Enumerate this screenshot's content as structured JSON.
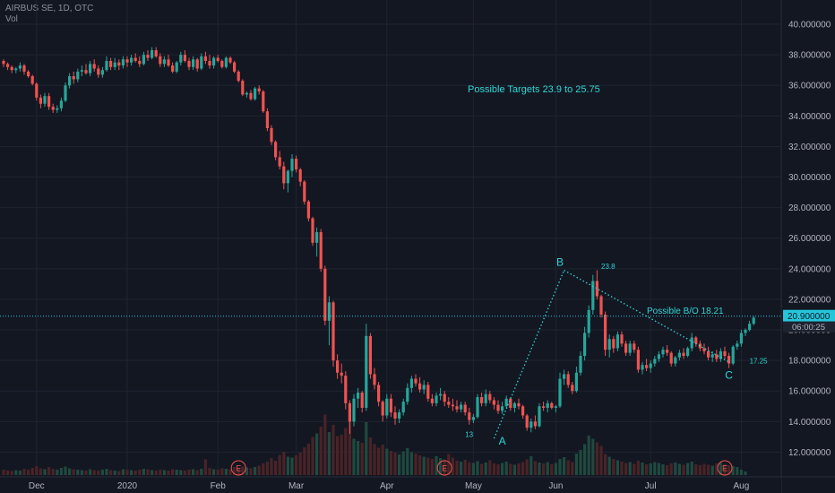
{
  "header": {
    "symbol_line": "AIRBUS SE, 1D, OTC",
    "volume_label": "Vol"
  },
  "colors": {
    "background": "#131722",
    "grid": "#1f2430",
    "up": "#26a69a",
    "down": "#ef5350",
    "vol_up": "#1f4a3f",
    "vol_down": "#4a2326",
    "annotation": "#2fd6d6",
    "axis_text": "#b2b5be",
    "price_line": "#26c6da"
  },
  "chart_data": {
    "type": "candlestick",
    "title": "AIRBUS SE, 1D, OTC",
    "y_axis": {
      "min": 10.5,
      "max": 41,
      "ticks": [
        12,
        14,
        16,
        18,
        20,
        22,
        24,
        26,
        28,
        30,
        32,
        34,
        36,
        38,
        40
      ],
      "tick_labels": [
        "12.000000",
        "14.000000",
        "16.000000",
        "18.000000",
        "20.000000",
        "22.000000",
        "24.000000",
        "26.000000",
        "28.000000",
        "30.000000",
        "32.000000",
        "34.000000",
        "36.000000",
        "38.000000",
        "40.000000"
      ]
    },
    "x_axis": {
      "labels": [
        {
          "i": 8,
          "label": "Dec"
        },
        {
          "i": 30,
          "label": "2020"
        },
        {
          "i": 52,
          "label": "Feb"
        },
        {
          "i": 71,
          "label": "Mar"
        },
        {
          "i": 93,
          "label": "Apr"
        },
        {
          "i": 114,
          "label": "May"
        },
        {
          "i": 134,
          "label": "Jun"
        },
        {
          "i": 157,
          "label": "Jul"
        },
        {
          "i": 179,
          "label": "Aug"
        }
      ]
    },
    "candles": [
      [
        37.6,
        37.7,
        37.2,
        37.4
      ],
      [
        37.4,
        37.5,
        37.0,
        37.2
      ],
      [
        37.2,
        37.3,
        36.8,
        37.0
      ],
      [
        37.0,
        37.2,
        36.8,
        37.1
      ],
      [
        37.1,
        37.5,
        36.9,
        37.3
      ],
      [
        37.3,
        37.4,
        36.7,
        36.9
      ],
      [
        36.9,
        37.0,
        36.5,
        36.6
      ],
      [
        36.6,
        36.7,
        36.0,
        36.1
      ],
      [
        36.1,
        36.2,
        35.0,
        35.2
      ],
      [
        35.2,
        35.4,
        34.5,
        34.8
      ],
      [
        34.8,
        35.5,
        34.6,
        35.3
      ],
      [
        35.3,
        35.5,
        34.4,
        34.6
      ],
      [
        34.6,
        34.8,
        34.2,
        34.4
      ],
      [
        34.4,
        34.7,
        34.2,
        34.5
      ],
      [
        34.5,
        35.2,
        34.3,
        35.0
      ],
      [
        35.0,
        36.2,
        34.9,
        36.0
      ],
      [
        36.0,
        36.8,
        35.8,
        36.6
      ],
      [
        36.6,
        36.9,
        36.1,
        36.4
      ],
      [
        36.4,
        37.1,
        36.2,
        36.9
      ],
      [
        36.9,
        37.3,
        36.6,
        37.0
      ],
      [
        37.0,
        37.4,
        36.7,
        36.8
      ],
      [
        36.8,
        37.6,
        36.6,
        37.4
      ],
      [
        37.4,
        37.7,
        36.9,
        37.1
      ],
      [
        37.1,
        37.3,
        36.5,
        36.7
      ],
      [
        36.7,
        37.2,
        36.5,
        37.0
      ],
      [
        37.0,
        37.9,
        36.9,
        37.6
      ],
      [
        37.6,
        37.8,
        37.0,
        37.2
      ],
      [
        37.2,
        37.8,
        37.0,
        37.5
      ],
      [
        37.5,
        37.7,
        37.0,
        37.3
      ],
      [
        37.3,
        37.9,
        37.1,
        37.7
      ],
      [
        37.7,
        37.9,
        37.2,
        37.5
      ],
      [
        37.5,
        38.0,
        37.3,
        37.8
      ],
      [
        37.8,
        38.1,
        37.5,
        37.6
      ],
      [
        37.6,
        37.9,
        37.2,
        37.4
      ],
      [
        37.4,
        38.2,
        37.3,
        38.0
      ],
      [
        38.0,
        38.3,
        37.6,
        37.8
      ],
      [
        37.8,
        38.5,
        37.7,
        38.3
      ],
      [
        38.3,
        38.5,
        37.8,
        37.9
      ],
      [
        37.9,
        38.1,
        37.2,
        37.4
      ],
      [
        37.4,
        37.9,
        37.2,
        37.7
      ],
      [
        37.7,
        38.0,
        37.2,
        37.3
      ],
      [
        37.3,
        37.5,
        36.8,
        36.9
      ],
      [
        36.9,
        37.6,
        36.8,
        37.5
      ],
      [
        37.5,
        38.2,
        37.3,
        38.0
      ],
      [
        38.0,
        38.3,
        37.5,
        37.6
      ],
      [
        37.6,
        37.8,
        37.0,
        37.2
      ],
      [
        37.2,
        37.9,
        37.0,
        37.7
      ],
      [
        37.7,
        37.8,
        36.9,
        37.1
      ],
      [
        37.1,
        38.1,
        37.0,
        37.9
      ],
      [
        37.9,
        38.2,
        37.4,
        37.6
      ],
      [
        37.6,
        38.0,
        37.1,
        37.3
      ],
      [
        37.3,
        37.9,
        37.1,
        37.8
      ],
      [
        37.8,
        38.0,
        37.5,
        37.6
      ],
      [
        37.6,
        37.7,
        37.1,
        37.2
      ],
      [
        37.2,
        37.9,
        37.1,
        37.8
      ],
      [
        37.8,
        37.9,
        37.4,
        37.5
      ],
      [
        37.5,
        37.6,
        36.8,
        36.9
      ],
      [
        36.9,
        37.0,
        36.2,
        36.3
      ],
      [
        36.3,
        36.4,
        35.3,
        35.4
      ],
      [
        35.4,
        35.6,
        35.2,
        35.5
      ],
      [
        35.5,
        35.7,
        35.0,
        35.1
      ],
      [
        35.1,
        35.9,
        35.0,
        35.8
      ],
      [
        35.8,
        36.0,
        35.4,
        35.6
      ],
      [
        35.6,
        35.7,
        34.2,
        34.3
      ],
      [
        34.3,
        34.5,
        33.0,
        33.2
      ],
      [
        33.2,
        33.4,
        32.1,
        32.3
      ],
      [
        32.3,
        32.4,
        31.1,
        31.3
      ],
      [
        31.3,
        31.7,
        30.5,
        30.7
      ],
      [
        30.7,
        31.0,
        29.2,
        29.6
      ],
      [
        29.6,
        30.5,
        29.0,
        30.4
      ],
      [
        30.4,
        31.5,
        30.0,
        31.2
      ],
      [
        31.2,
        31.4,
        30.3,
        30.5
      ],
      [
        30.5,
        30.6,
        29.4,
        29.7
      ],
      [
        29.7,
        29.8,
        28.2,
        28.4
      ],
      [
        28.4,
        28.5,
        27.1,
        27.3
      ],
      [
        27.3,
        27.4,
        25.5,
        25.7
      ],
      [
        25.7,
        26.7,
        24.8,
        26.4
      ],
      [
        26.4,
        26.6,
        23.8,
        24.0
      ],
      [
        24.0,
        24.2,
        20.3,
        20.6
      ],
      [
        20.6,
        22.2,
        19.0,
        21.8
      ],
      [
        21.8,
        21.9,
        17.6,
        18.0
      ],
      [
        18.0,
        18.4,
        16.8,
        17.2
      ],
      [
        17.2,
        17.8,
        16.5,
        17.0
      ],
      [
        17.0,
        17.3,
        14.8,
        15.2
      ],
      [
        15.2,
        15.4,
        13.2,
        14.0
      ],
      [
        14.0,
        15.8,
        13.7,
        15.5
      ],
      [
        15.5,
        16.2,
        14.9,
        15.9
      ],
      [
        15.9,
        16.0,
        14.6,
        14.9
      ],
      [
        14.9,
        20.4,
        14.7,
        19.6
      ],
      [
        19.6,
        19.8,
        16.8,
        17.1
      ],
      [
        17.1,
        17.5,
        16.1,
        16.4
      ],
      [
        16.4,
        16.6,
        15.0,
        15.3
      ],
      [
        15.3,
        15.4,
        14.0,
        14.4
      ],
      [
        14.4,
        15.8,
        14.2,
        15.5
      ],
      [
        15.5,
        15.8,
        14.3,
        14.6
      ],
      [
        14.6,
        15.0,
        13.8,
        14.2
      ],
      [
        14.2,
        14.8,
        13.9,
        14.6
      ],
      [
        14.6,
        15.5,
        14.4,
        15.3
      ],
      [
        15.3,
        16.5,
        15.1,
        16.2
      ],
      [
        16.2,
        17.0,
        15.9,
        16.8
      ],
      [
        16.8,
        17.1,
        16.3,
        16.5
      ],
      [
        16.5,
        16.9,
        15.9,
        16.1
      ],
      [
        16.1,
        16.7,
        15.8,
        16.4
      ],
      [
        16.4,
        16.6,
        15.3,
        15.5
      ],
      [
        15.5,
        15.8,
        15.0,
        15.2
      ],
      [
        15.2,
        15.9,
        15.0,
        15.7
      ],
      [
        15.7,
        16.2,
        15.4,
        15.8
      ],
      [
        15.8,
        16.0,
        15.0,
        15.3
      ],
      [
        15.3,
        15.6,
        14.9,
        15.1
      ],
      [
        15.1,
        15.5,
        14.7,
        15.0
      ],
      [
        15.0,
        15.4,
        14.6,
        14.8
      ],
      [
        14.8,
        15.3,
        14.6,
        15.1
      ],
      [
        15.1,
        15.3,
        14.4,
        14.6
      ],
      [
        14.6,
        14.9,
        13.8,
        14.1
      ],
      [
        14.1,
        14.5,
        13.9,
        14.3
      ],
      [
        14.3,
        15.8,
        14.2,
        15.6
      ],
      [
        15.6,
        15.9,
        15.0,
        15.2
      ],
      [
        15.2,
        16.1,
        15.0,
        15.8
      ],
      [
        15.8,
        16.0,
        15.2,
        15.4
      ],
      [
        15.4,
        15.6,
        14.8,
        15.1
      ],
      [
        15.1,
        15.4,
        14.5,
        14.7
      ],
      [
        14.7,
        15.3,
        14.5,
        15.0
      ],
      [
        15.0,
        15.7,
        14.9,
        15.5
      ],
      [
        15.5,
        15.6,
        14.7,
        14.9
      ],
      [
        14.9,
        15.3,
        14.6,
        15.2
      ],
      [
        15.2,
        15.5,
        14.8,
        15.0
      ],
      [
        15.0,
        15.1,
        14.2,
        14.4
      ],
      [
        14.4,
        14.5,
        13.4,
        13.6
      ],
      [
        13.6,
        14.2,
        13.3,
        14.0
      ],
      [
        14.0,
        14.4,
        13.5,
        13.7
      ],
      [
        13.7,
        15.2,
        13.6,
        15.0
      ],
      [
        15.0,
        15.3,
        14.7,
        14.9
      ],
      [
        14.9,
        15.4,
        14.6,
        15.2
      ],
      [
        15.2,
        15.3,
        14.8,
        14.9
      ],
      [
        14.9,
        15.1,
        14.6,
        15.0
      ],
      [
        15.0,
        17.2,
        14.9,
        16.8
      ],
      [
        16.8,
        17.4,
        16.4,
        17.1
      ],
      [
        17.1,
        17.3,
        16.2,
        16.4
      ],
      [
        16.4,
        16.6,
        15.8,
        16.0
      ],
      [
        16.0,
        17.6,
        15.9,
        17.2
      ],
      [
        17.2,
        18.6,
        17.0,
        18.3
      ],
      [
        18.3,
        20.2,
        18.0,
        19.8
      ],
      [
        19.8,
        21.6,
        19.5,
        21.3
      ],
      [
        21.3,
        23.6,
        21.0,
        23.2
      ],
      [
        23.2,
        23.9,
        22.0,
        22.2
      ],
      [
        22.2,
        22.3,
        20.8,
        21.0
      ],
      [
        21.0,
        21.2,
        18.3,
        18.7
      ],
      [
        18.7,
        19.7,
        18.2,
        19.4
      ],
      [
        19.4,
        19.6,
        18.5,
        18.8
      ],
      [
        18.8,
        19.9,
        18.6,
        19.7
      ],
      [
        19.7,
        19.9,
        18.9,
        19.1
      ],
      [
        19.1,
        19.3,
        18.3,
        18.5
      ],
      [
        18.5,
        19.3,
        18.3,
        19.1
      ],
      [
        19.1,
        19.3,
        18.5,
        18.7
      ],
      [
        18.7,
        18.9,
        17.2,
        17.4
      ],
      [
        17.4,
        17.9,
        17.1,
        17.7
      ],
      [
        17.7,
        18.1,
        17.3,
        17.5
      ],
      [
        17.5,
        18.0,
        17.2,
        17.8
      ],
      [
        17.8,
        18.3,
        17.6,
        18.1
      ],
      [
        18.1,
        18.6,
        17.9,
        18.4
      ],
      [
        18.4,
        18.9,
        18.2,
        18.7
      ],
      [
        18.7,
        19.0,
        18.3,
        18.5
      ],
      [
        18.5,
        18.6,
        17.6,
        17.8
      ],
      [
        17.8,
        18.3,
        17.6,
        18.2
      ],
      [
        18.2,
        18.7,
        18.0,
        18.5
      ],
      [
        18.5,
        18.8,
        18.1,
        18.3
      ],
      [
        18.3,
        18.9,
        18.2,
        18.8
      ],
      [
        18.8,
        19.8,
        18.6,
        19.5
      ],
      [
        19.5,
        19.6,
        18.9,
        19.1
      ],
      [
        19.1,
        19.3,
        18.6,
        18.8
      ],
      [
        18.8,
        19.1,
        18.4,
        18.6
      ],
      [
        18.6,
        18.9,
        18.0,
        18.2
      ],
      [
        18.2,
        18.6,
        17.9,
        18.4
      ],
      [
        18.4,
        18.7,
        17.9,
        18.1
      ],
      [
        18.1,
        18.8,
        17.9,
        18.6
      ],
      [
        18.6,
        18.9,
        18.1,
        18.3
      ],
      [
        18.3,
        18.5,
        17.5,
        17.8
      ],
      [
        17.8,
        19.0,
        17.7,
        18.9
      ],
      [
        18.9,
        19.3,
        18.7,
        19.1
      ],
      [
        19.1,
        20.0,
        18.9,
        19.8
      ],
      [
        19.8,
        20.1,
        19.6,
        20.0
      ],
      [
        20.0,
        20.6,
        19.9,
        20.4
      ],
      [
        20.4,
        20.9,
        20.3,
        20.8
      ]
    ],
    "volume_max": 14,
    "volume": [
      1.2,
      1.0,
      0.9,
      1.1,
      1.0,
      1.4,
      1.2,
      1.6,
      2.0,
      1.5,
      1.3,
      1.8,
      1.4,
      1.2,
      1.6,
      1.9,
      1.5,
      1.3,
      1.2,
      1.1,
      1.0,
      1.3,
      1.1,
      1.0,
      1.2,
      1.4,
      1.1,
      1.0,
      0.9,
      1.3,
      1.2,
      1.1,
      1.0,
      1.2,
      1.4,
      1.3,
      1.1,
      1.0,
      1.2,
      1.1,
      1.0,
      1.3,
      1.2,
      1.1,
      1.0,
      1.2,
      1.3,
      1.1,
      1.4,
      3.5,
      1.6,
      1.3,
      1.2,
      1.5,
      1.4,
      1.3,
      1.8,
      1.6,
      1.9,
      1.7,
      1.5,
      1.8,
      2.1,
      2.6,
      3.0,
      3.8,
      3.2,
      4.5,
      5.2,
      4.1,
      3.9,
      4.4,
      5.0,
      6.2,
      7.0,
      8.5,
      9.3,
      10.8,
      13.5,
      9.6,
      11.2,
      8.7,
      9.0,
      10.5,
      12.0,
      8.1,
      7.6,
      7.2,
      11.8,
      8.4,
      6.9,
      6.1,
      6.8,
      5.9,
      5.4,
      5.0,
      4.6,
      5.3,
      6.0,
      5.1,
      4.8,
      4.4,
      4.1,
      3.9,
      3.6,
      4.2,
      3.8,
      3.5,
      4.7,
      3.9,
      3.2,
      3.0,
      3.4,
      2.9,
      2.7,
      3.1,
      2.5,
      2.8,
      3.3,
      2.6,
      2.4,
      2.7,
      3.0,
      2.5,
      2.3,
      2.6,
      2.9,
      3.5,
      4.2,
      3.1,
      2.8,
      2.6,
      2.9,
      2.4,
      2.7,
      3.6,
      4.0,
      3.3,
      2.9,
      4.8,
      5.6,
      6.9,
      8.8,
      8.1,
      7.3,
      6.5,
      4.7,
      4.1,
      3.6,
      3.3,
      3.0,
      2.7,
      2.9,
      2.5,
      3.2,
      2.8,
      2.4,
      2.6,
      2.9,
      2.7,
      2.4,
      2.2,
      2.6,
      2.8,
      2.5,
      2.3,
      2.7,
      3.0,
      2.4,
      2.2,
      2.5,
      2.3,
      2.1,
      2.6,
      2.8,
      2.4,
      2.2,
      2.0,
      1.8,
      1.2,
      0.8
    ],
    "earnings_markers": [
      {
        "i": 57,
        "label": "E"
      },
      {
        "i": 107,
        "label": "E"
      },
      {
        "i": 175,
        "label": "E"
      }
    ],
    "price_line": {
      "value": 20.9,
      "label": "20.900000",
      "countdown": "06:00:25"
    },
    "annotations": {
      "targets_text": "Possible Targets  23.9 to 25.75",
      "breakout_text": "Possible B/O 18.21",
      "wave_labels": [
        {
          "label": "A",
          "i": 121,
          "y": 12.5
        },
        {
          "label": "B",
          "i": 135,
          "y": 24.2
        },
        {
          "label": "C",
          "i": 176,
          "y": 16.8
        }
      ],
      "value_labels": [
        {
          "label": "13",
          "i": 112,
          "y": 13.0
        },
        {
          "label": "23.8",
          "i": 145,
          "y": 24.0
        },
        {
          "label": "17.25",
          "i": 181,
          "y": 17.8
        }
      ],
      "dotted_lines": [
        {
          "from": {
            "i": 119,
            "y": 12.9
          },
          "to": {
            "i": 136,
            "y": 23.9
          }
        },
        {
          "from": {
            "i": 136,
            "y": 23.9
          },
          "to": {
            "i": 176,
            "y": 17.9
          }
        }
      ]
    }
  }
}
